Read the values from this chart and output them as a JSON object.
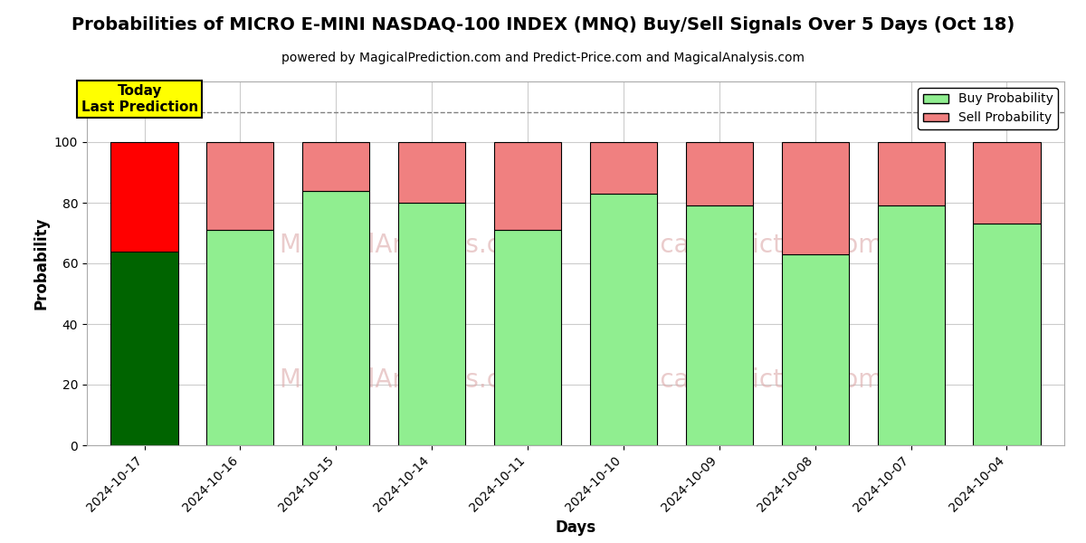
{
  "title": "Probabilities of MICRO E-MINI NASDAQ-100 INDEX (MNQ) Buy/Sell Signals Over 5 Days (Oct 18)",
  "subtitle": "powered by MagicalPrediction.com and Predict-Price.com and MagicalAnalysis.com",
  "xlabel": "Days",
  "ylabel": "Probability",
  "categories": [
    "2024-10-17",
    "2024-10-16",
    "2024-10-15",
    "2024-10-14",
    "2024-10-11",
    "2024-10-10",
    "2024-10-09",
    "2024-10-08",
    "2024-10-07",
    "2024-10-04"
  ],
  "buy_values": [
    64,
    71,
    84,
    80,
    71,
    83,
    79,
    63,
    79,
    73
  ],
  "sell_values": [
    36,
    29,
    16,
    20,
    29,
    17,
    21,
    37,
    21,
    27
  ],
  "today_bar_buy_color": "#006400",
  "today_bar_sell_color": "#FF0000",
  "other_bar_buy_color": "#90EE90",
  "other_bar_sell_color": "#F08080",
  "bar_edge_color": "#000000",
  "today_annotation_bg": "#FFFF00",
  "today_annotation_text": "Today\nLast Prediction",
  "dashed_line_y": 110,
  "ylim": [
    0,
    120
  ],
  "yticks": [
    0,
    20,
    40,
    60,
    80,
    100
  ],
  "background_color": "#ffffff",
  "grid_color": "#cccccc",
  "legend_buy_color": "#90EE90",
  "legend_sell_color": "#F08080",
  "title_fontsize": 14,
  "subtitle_fontsize": 10,
  "axis_label_fontsize": 12,
  "tick_fontsize": 10,
  "watermark_color": "#ddaaaa",
  "bar_width": 0.7
}
